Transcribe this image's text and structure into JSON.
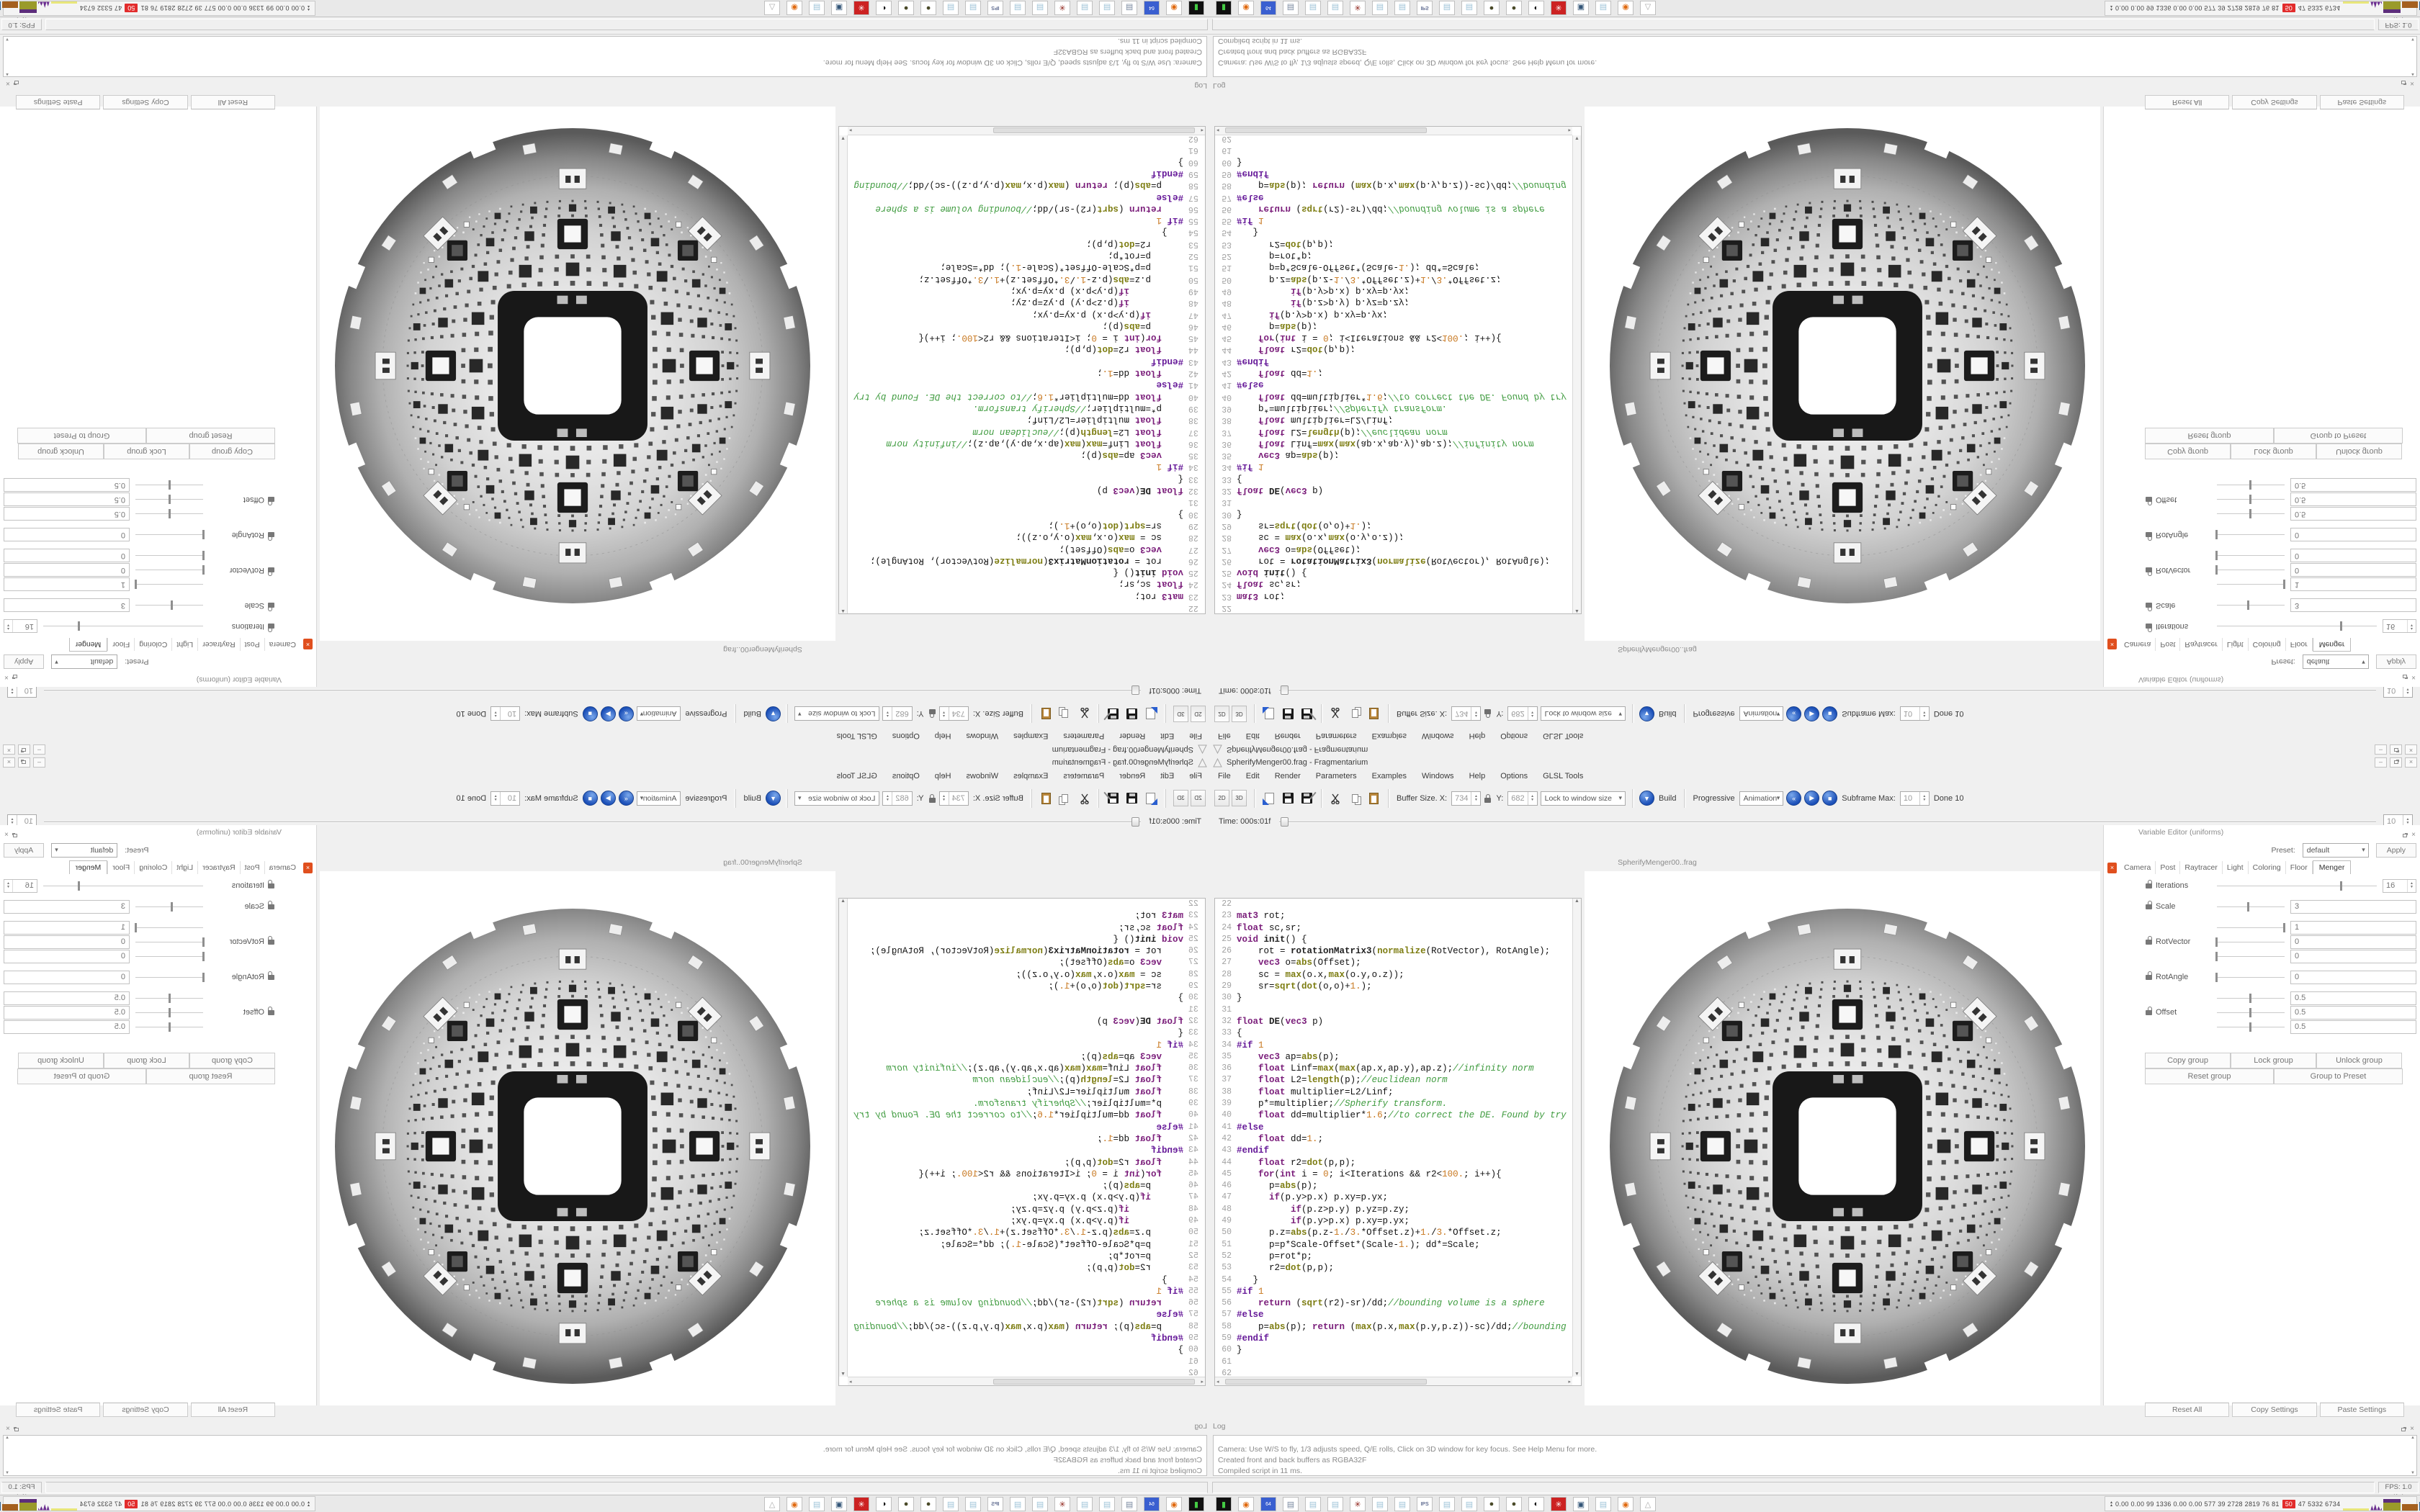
{
  "window": {
    "title": "SpherifyMenger00.frag - Fragmentarium",
    "min_label": "–",
    "close_label": "×"
  },
  "menu": [
    "File",
    "Edit",
    "Render",
    "Parameters",
    "Examples",
    "Windows",
    "Help",
    "Options",
    "GLSL Tools"
  ],
  "toolbar": {
    "view2d": "2D",
    "view3d": "3D",
    "buffer_size_label": "Buffer Size. X:",
    "buffer_x": "734",
    "buffer_y_label": "Y:",
    "buffer_y": "682",
    "lock_combo": "Lock to window size",
    "build_label": "Build",
    "build_glyph": "▼",
    "rewind_glyph": "«",
    "play_glyph": "▶",
    "stop_glyph": "■",
    "progressive_label": "Progressive",
    "animation_label": "Animation",
    "subframe_label": "Subframe Max:",
    "subframe_value": "10",
    "done_label": "Done 10"
  },
  "timebar": {
    "label": "Time: 000s:01f",
    "spin": "10"
  },
  "editor": {
    "dock_title": "SpherifyMenger00..frag",
    "first_line": 22,
    "lines": [
      "",
      "mat3 rot;",
      "float sc,sr;",
      "void init() {",
      "    rot = rotationMatrix3(normalize(RotVector), RotAngle);",
      "    vec3 o=abs(Offset);",
      "    sc = max(o.x,max(o.y,o.z));",
      "    sr=sqrt(dot(o,o)+1.);",
      "}",
      "",
      "float DE(vec3 p)",
      "{",
      "#if 1",
      "    vec3 ap=abs(p);",
      "    float Linf=max(max(ap.x,ap.y),ap.z);//infinity norm",
      "    float L2=length(p);//euclidean norm",
      "    float multiplier=L2/Linf;",
      "    p*=multiplier;//Spherify transform.",
      "    float dd=multiplier*1.6;//to correct the DE. Found by try",
      "#else",
      "    float dd=1.;",
      "#endif",
      "    float r2=dot(p,p);",
      "    for(int i = 0; i<Iterations && r2<100.; i++){",
      "      p=abs(p);",
      "      if(p.y>p.x) p.xy=p.yx;",
      "          if(p.z>p.y) p.yz=p.zy;",
      "          if(p.y>p.x) p.xy=p.yx;",
      "      p.z=abs(p.z-1./3.*Offset.z)+1./3.*Offset.z;",
      "      p=p*Scale-Offset*(Scale-1.); dd*=Scale;",
      "      p=rot*p;",
      "      r2=dot(p,p);",
      "   }",
      "#if 1",
      "    return (sqrt(r2)-sr)/dd;//bounding volume is a sphere",
      "#else",
      "    p=abs(p); return (max(p.x,max(p.y,p.z))-sc)/dd;//bounding",
      "#endif",
      "}",
      "",
      ""
    ]
  },
  "preview": {
    "fractal": "spherified-menger-sphere",
    "sphere_light": "#f4f4f4",
    "sphere_dark": "#5a5a5a",
    "hole_color": "#181818"
  },
  "variable_editor": {
    "dock_title": "Variable Editor (uniforms)",
    "preset_label": "Preset:",
    "preset_value": "default",
    "apply_label": "Apply",
    "tabs": [
      "Camera",
      "Post",
      "Raytracer",
      "Light",
      "Coloring",
      "Floor",
      "Menger"
    ],
    "active_tab": "Menger",
    "groups": [
      {
        "label": "Iterations",
        "type": "spin",
        "rows": [
          {
            "value": "16",
            "thumb": 0.78
          }
        ]
      },
      {
        "label": "Scale",
        "type": "wide",
        "rows": [
          {
            "value": "3",
            "thumb": 0.47
          }
        ]
      },
      {
        "label": "RotVector",
        "type": "wide",
        "rows": [
          {
            "value": "1",
            "thumb": 1.0
          },
          {
            "value": "0",
            "thumb": 0.0
          },
          {
            "value": "0",
            "thumb": 0.0
          }
        ]
      },
      {
        "label": "RotAngle",
        "type": "wide",
        "rows": [
          {
            "value": "0",
            "thumb": 0.0
          }
        ]
      },
      {
        "label": "Offset",
        "type": "wide",
        "rows": [
          {
            "value": "0.5",
            "thumb": 0.5
          },
          {
            "value": "0.5",
            "thumb": 0.5
          },
          {
            "value": "0.5",
            "thumb": 0.5
          }
        ]
      }
    ],
    "group_buttons_row1": [
      "Copy group",
      "Lock group",
      "Unlock group"
    ],
    "group_buttons_row2": [
      "Reset group",
      "Group to Preset"
    ],
    "bottom_buttons": [
      "Reset All",
      "Copy Settings",
      "Paste Settings"
    ]
  },
  "log": {
    "dock_title": "Log",
    "lines": [
      "Camera: Use W/S to fly, 1/3 adjusts speed, Q/E rolls, Click on 3D window for key focus. See Help Menu for more.",
      "Created front and back buffers as RGBA32F",
      "Compiled script in 11 ms."
    ]
  },
  "statusbar": {
    "fps": "FPS: 1.0 (1s)"
  },
  "taskbar": {
    "icons": [
      {
        "name": "console-icon",
        "bg": "#101010",
        "fg": "#44cc44",
        "glyph": "▮"
      },
      {
        "name": "firefox-icon",
        "bg": "#ffffff",
        "fg": "#e06a10",
        "glyph": "◉"
      },
      {
        "name": "floppy64-icon",
        "bg": "#3a5fd0",
        "fg": "#ffffff",
        "glyph": "64"
      },
      {
        "name": "scroll-icon",
        "bg": "#ffffff",
        "fg": "#7a8aa0",
        "glyph": "▤"
      },
      {
        "name": "notepad-icon",
        "bg": "#ffffff",
        "fg": "#9fc4d8",
        "glyph": "▤"
      },
      {
        "name": "notepad-icon",
        "bg": "#ffffff",
        "fg": "#9fc4d8",
        "glyph": "▤"
      },
      {
        "name": "splat-icon",
        "bg": "#ffffff",
        "fg": "#8a1a10",
        "glyph": "✳"
      },
      {
        "name": "notepad-icon",
        "bg": "#ffffff",
        "fg": "#9fc4d8",
        "glyph": "▤"
      },
      {
        "name": "notepad-icon",
        "bg": "#ffffff",
        "fg": "#9fc4d8",
        "glyph": "▤"
      },
      {
        "name": "ips-doc-icon",
        "bg": "#ffffff",
        "fg": "#223366",
        "glyph": "IPS"
      },
      {
        "name": "notepad-icon",
        "bg": "#ffffff",
        "fg": "#9fc4d8",
        "glyph": "▤"
      },
      {
        "name": "notepad-icon",
        "bg": "#ffffff",
        "fg": "#9fc4d8",
        "glyph": "▤"
      },
      {
        "name": "grenade-icon",
        "bg": "#ffffff",
        "fg": "#4a4a28",
        "glyph": "●"
      },
      {
        "name": "grenade-icon",
        "bg": "#ffffff",
        "fg": "#4a4a28",
        "glyph": "●"
      },
      {
        "name": "penguin-icon",
        "bg": "#ffffff",
        "fg": "#111111",
        "glyph": "◐"
      },
      {
        "name": "red-app-icon",
        "bg": "#cc2222",
        "fg": "#ffffff",
        "glyph": "✳"
      },
      {
        "name": "monitor-icon",
        "bg": "#ffffff",
        "fg": "#335577",
        "glyph": "▣"
      },
      {
        "name": "notepad-icon",
        "bg": "#ffffff",
        "fg": "#9fc4d8",
        "glyph": "▤"
      },
      {
        "name": "firefox-icon",
        "bg": "#ffffff",
        "fg": "#e06a10",
        "glyph": "◉"
      },
      {
        "name": "fragmentarium-icon",
        "bg": "#ffffff",
        "fg": "#aaaaaa",
        "glyph": "△"
      }
    ],
    "tray": {
      "numbers_pre": "0.00 0.00   99   1336 0.00 0.00   577   39   2728 2819   76    81",
      "alert": "50",
      "numbers_post": "47   5332 6734",
      "graphs": [
        {
          "name": "yellow-line-graph",
          "color": "#e8e67a"
        },
        {
          "name": "purple-spikes-graph",
          "color": "#6a2d8e"
        },
        {
          "name": "olive-block-graph",
          "color": "#9a9a2a",
          "cap": "#5c2d7a"
        },
        {
          "name": "brown-block-graph",
          "color": "#a5601f"
        },
        {
          "name": "blue-block-graph",
          "color": "#2f6391"
        },
        {
          "name": "brown-block-graph2",
          "color": "#a5601f"
        },
        {
          "name": "red-mountain-graph",
          "color": "#7c1616",
          "base": "#3aaa3a"
        }
      ]
    }
  }
}
